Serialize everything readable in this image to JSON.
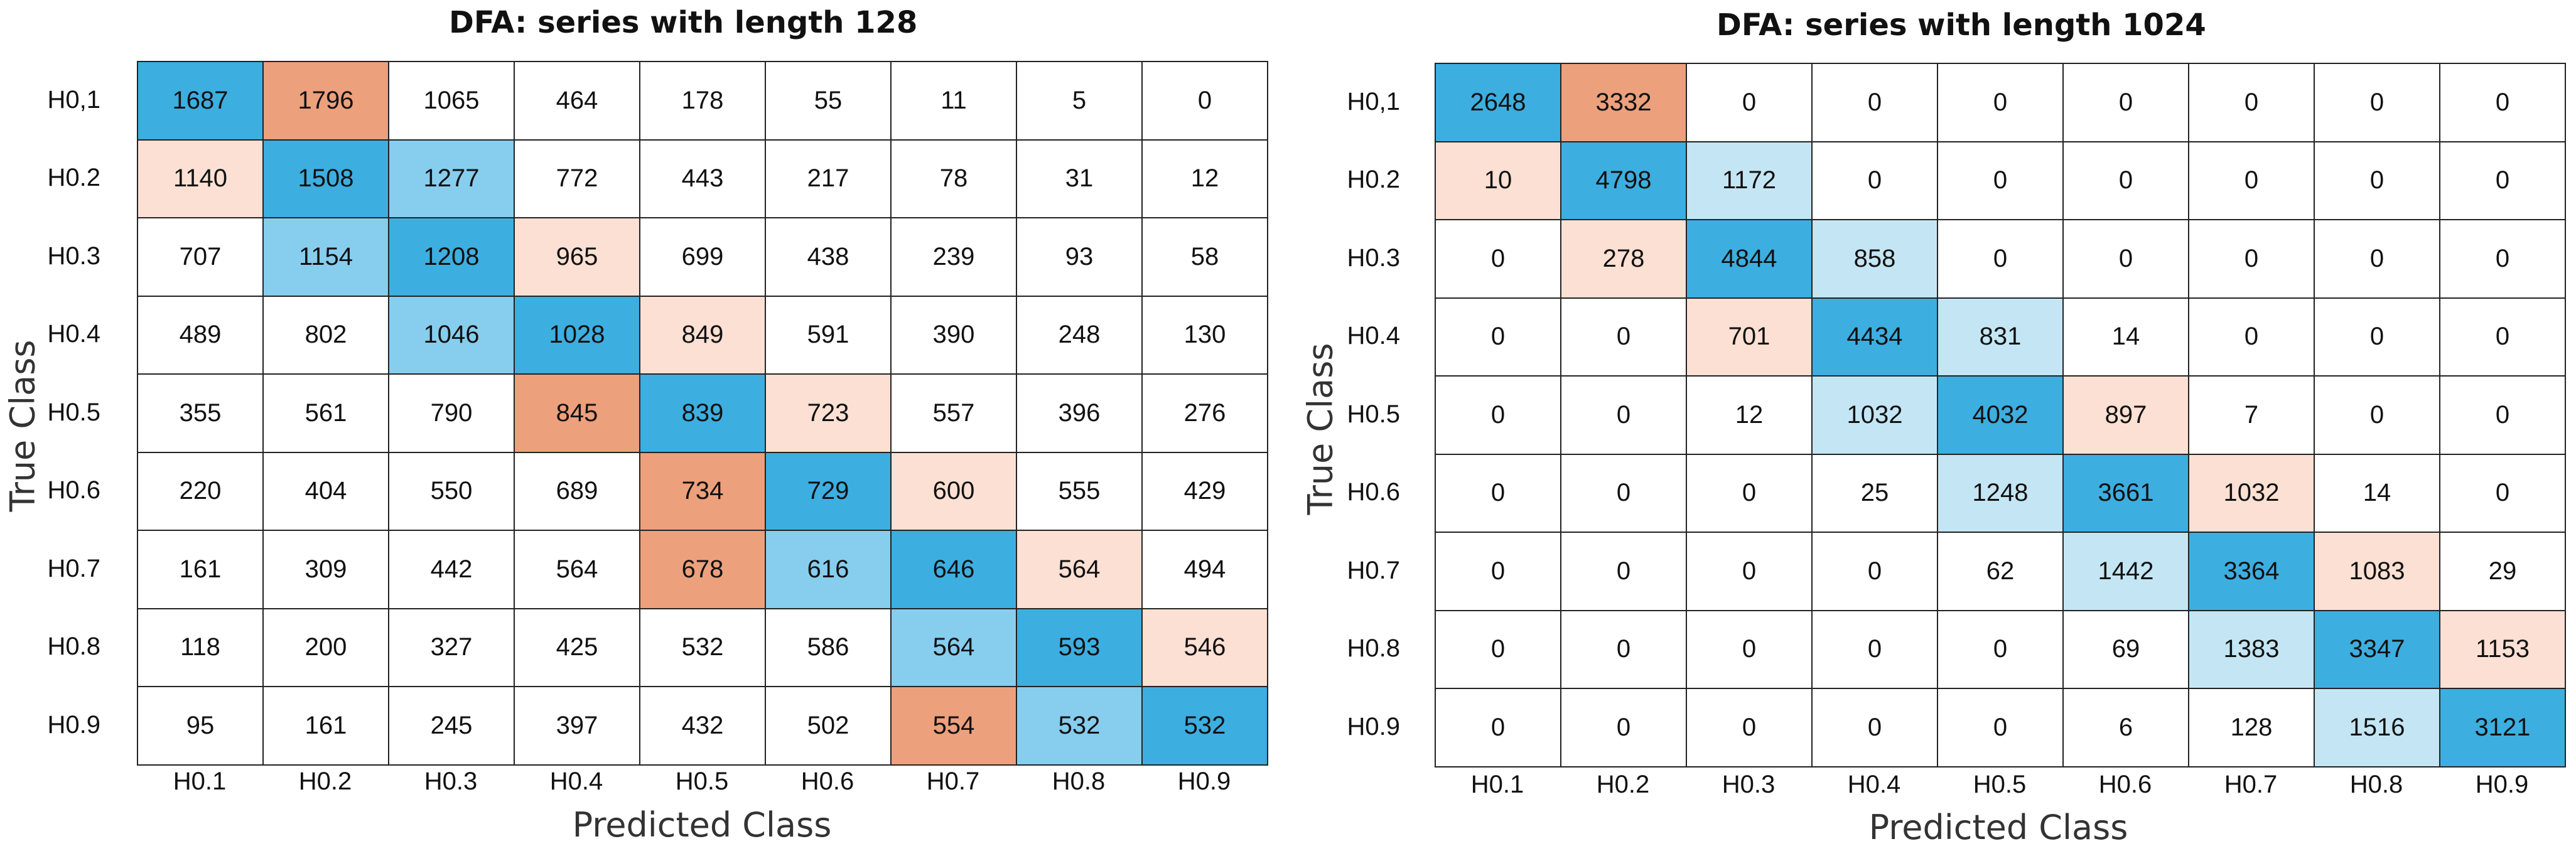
{
  "colors": {
    "strong_blue": "#3daee0",
    "light_blue": "#87cdee",
    "pale_blue": "#c4e6f4",
    "strong_orange": "#eca07c",
    "pale_orange": "#fce0d3",
    "white": "#ffffff"
  },
  "chart_data": [
    {
      "type": "heatmap",
      "title": "DFA: series with length 128",
      "xlabel": "Predicted Class",
      "ylabel": "True Class",
      "x_categories": [
        "H0.1",
        "H0.2",
        "H0.3",
        "H0.4",
        "H0.5",
        "H0.6",
        "H0.7",
        "H0.8",
        "H0.9"
      ],
      "y_categories": [
        "H0,1",
        "H0.2",
        "H0.3",
        "H0.4",
        "H0.5",
        "H0.6",
        "H0.7",
        "H0.8",
        "H0.9"
      ],
      "values": [
        [
          1687,
          1796,
          1065,
          464,
          178,
          55,
          11,
          5,
          0
        ],
        [
          1140,
          1508,
          1277,
          772,
          443,
          217,
          78,
          31,
          12
        ],
        [
          707,
          1154,
          1208,
          965,
          699,
          438,
          239,
          93,
          58
        ],
        [
          489,
          802,
          1046,
          1028,
          849,
          591,
          390,
          248,
          130
        ],
        [
          355,
          561,
          790,
          845,
          839,
          723,
          557,
          396,
          276
        ],
        [
          220,
          404,
          550,
          689,
          734,
          729,
          600,
          555,
          429
        ],
        [
          161,
          309,
          442,
          564,
          678,
          616,
          646,
          564,
          494
        ],
        [
          118,
          200,
          327,
          425,
          532,
          586,
          564,
          593,
          546
        ],
        [
          95,
          161,
          245,
          397,
          432,
          502,
          554,
          532,
          532
        ]
      ],
      "cell_colors": [
        [
          "strong_blue",
          "strong_orange",
          "white",
          "white",
          "white",
          "white",
          "white",
          "white",
          "white"
        ],
        [
          "pale_orange",
          "strong_blue",
          "light_blue",
          "white",
          "white",
          "white",
          "white",
          "white",
          "white"
        ],
        [
          "white",
          "light_blue",
          "strong_blue",
          "pale_orange",
          "white",
          "white",
          "white",
          "white",
          "white"
        ],
        [
          "white",
          "white",
          "light_blue",
          "strong_blue",
          "pale_orange",
          "white",
          "white",
          "white",
          "white"
        ],
        [
          "white",
          "white",
          "white",
          "strong_orange",
          "strong_blue",
          "pale_orange",
          "white",
          "white",
          "white"
        ],
        [
          "white",
          "white",
          "white",
          "white",
          "strong_orange",
          "strong_blue",
          "pale_orange",
          "white",
          "white"
        ],
        [
          "white",
          "white",
          "white",
          "white",
          "strong_orange",
          "light_blue",
          "strong_blue",
          "pale_orange",
          "white"
        ],
        [
          "white",
          "white",
          "white",
          "white",
          "white",
          "white",
          "light_blue",
          "strong_blue",
          "pale_orange"
        ],
        [
          "white",
          "white",
          "white",
          "white",
          "white",
          "white",
          "strong_orange",
          "light_blue",
          "strong_blue"
        ]
      ]
    },
    {
      "type": "heatmap",
      "title": "DFA: series with length 1024",
      "xlabel": "Predicted Class",
      "ylabel": "True Class",
      "x_categories": [
        "H0.1",
        "H0.2",
        "H0.3",
        "H0.4",
        "H0.5",
        "H0.6",
        "H0.7",
        "H0.8",
        "H0.9"
      ],
      "y_categories": [
        "H0,1",
        "H0.2",
        "H0.3",
        "H0.4",
        "H0.5",
        "H0.6",
        "H0.7",
        "H0.8",
        "H0.9"
      ],
      "values": [
        [
          2648,
          3332,
          0,
          0,
          0,
          0,
          0,
          0,
          0
        ],
        [
          10,
          4798,
          1172,
          0,
          0,
          0,
          0,
          0,
          0
        ],
        [
          0,
          278,
          4844,
          858,
          0,
          0,
          0,
          0,
          0
        ],
        [
          0,
          0,
          701,
          4434,
          831,
          14,
          0,
          0,
          0
        ],
        [
          0,
          0,
          12,
          1032,
          4032,
          897,
          7,
          0,
          0
        ],
        [
          0,
          0,
          0,
          25,
          1248,
          3661,
          1032,
          14,
          0
        ],
        [
          0,
          0,
          0,
          0,
          62,
          1442,
          3364,
          1083,
          29
        ],
        [
          0,
          0,
          0,
          0,
          0,
          69,
          1383,
          3347,
          1153
        ],
        [
          0,
          0,
          0,
          0,
          0,
          6,
          128,
          1516,
          3121
        ]
      ],
      "cell_colors": [
        [
          "strong_blue",
          "strong_orange",
          "white",
          "white",
          "white",
          "white",
          "white",
          "white",
          "white"
        ],
        [
          "pale_orange",
          "strong_blue",
          "pale_blue",
          "white",
          "white",
          "white",
          "white",
          "white",
          "white"
        ],
        [
          "white",
          "pale_orange",
          "strong_blue",
          "pale_blue",
          "white",
          "white",
          "white",
          "white",
          "white"
        ],
        [
          "white",
          "white",
          "pale_orange",
          "strong_blue",
          "pale_blue",
          "white",
          "white",
          "white",
          "white"
        ],
        [
          "white",
          "white",
          "white",
          "pale_blue",
          "strong_blue",
          "pale_orange",
          "white",
          "white",
          "white"
        ],
        [
          "white",
          "white",
          "white",
          "white",
          "pale_blue",
          "strong_blue",
          "pale_orange",
          "white",
          "white"
        ],
        [
          "white",
          "white",
          "white",
          "white",
          "white",
          "pale_blue",
          "strong_blue",
          "pale_orange",
          "white"
        ],
        [
          "white",
          "white",
          "white",
          "white",
          "white",
          "white",
          "pale_blue",
          "strong_blue",
          "pale_orange"
        ],
        [
          "white",
          "white",
          "white",
          "white",
          "white",
          "white",
          "white",
          "pale_blue",
          "strong_blue"
        ]
      ]
    }
  ]
}
